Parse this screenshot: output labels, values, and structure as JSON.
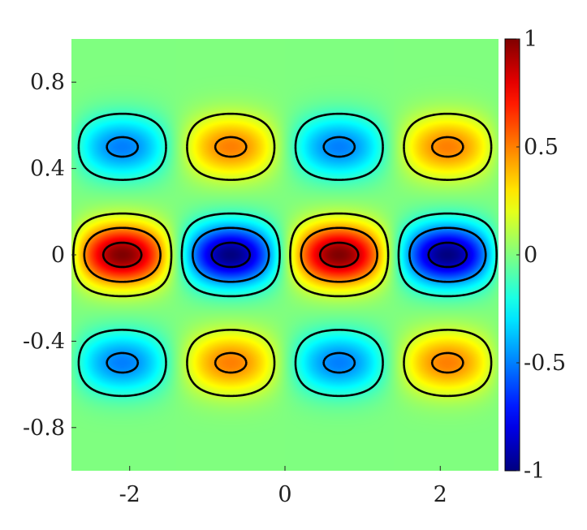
{
  "chart_data": {
    "type": "heatmap",
    "title": "",
    "xlabel": "",
    "ylabel": "",
    "xlim": [
      -2.75,
      2.75
    ],
    "ylim": [
      -1,
      1
    ],
    "x_ticks": [
      -2,
      0,
      2
    ],
    "x_tick_labels": [
      "-2",
      "0",
      "2"
    ],
    "y_ticks": [
      0.8,
      0.4,
      0,
      -0.4,
      -0.8
    ],
    "y_tick_labels": [
      "0.8",
      "0.4",
      "0",
      "-0.4",
      "-0.8"
    ],
    "colorbar": {
      "range": [
        -1,
        1
      ],
      "ticks": [
        1,
        0.5,
        0,
        -0.5,
        -1
      ],
      "tick_labels": [
        "1",
        "0.5",
        "0",
        "-0.5",
        "-1"
      ],
      "colormap": "jet"
    },
    "field": {
      "description_formula": "f(x,y) = sin(2.25x) * exp(-(y/0.14)^2) - 0.5*sin(2.25x) * [exp(-((y-0.5)/0.14)^2) + exp(-((y+0.5)/0.14)^2)]",
      "kx": 2.25,
      "center_amplitude": 1.0,
      "side_amplitude": -0.5,
      "side_band_centers": [
        0.5,
        -0.5
      ],
      "band_width": 0.14
    },
    "contours": {
      "levels_positive_solid": [
        0.15,
        0.45,
        0.85
      ],
      "levels_negative_dashed": [
        -0.15,
        -0.45,
        -0.85
      ],
      "line_color": "#000000"
    },
    "grid": false
  }
}
